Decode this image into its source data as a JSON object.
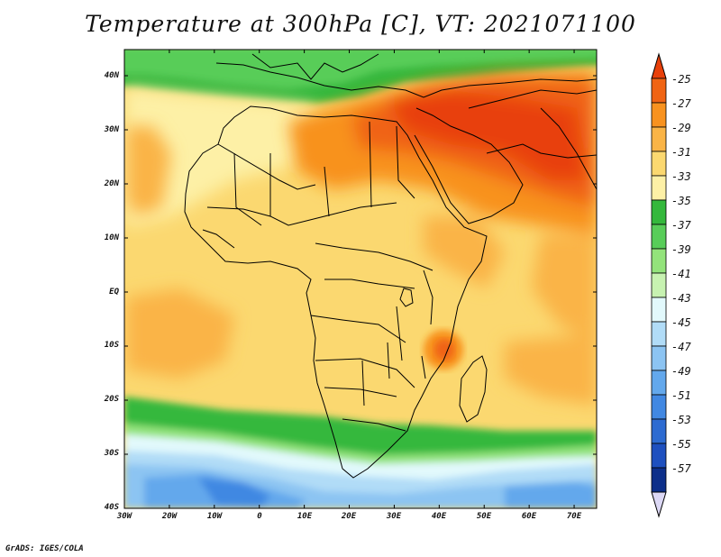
{
  "title": "Temperature at 300hPa [C], VT: 2021071100",
  "credit": "GrADS: IGES/COLA",
  "map": {
    "region": "Africa",
    "lon_labels": [
      "30W",
      "20W",
      "10W",
      "0",
      "10E",
      "20E",
      "30E",
      "40E",
      "50E",
      "60E",
      "70E"
    ],
    "lat_labels": [
      "40N",
      "30N",
      "20N",
      "10N",
      "EQ",
      "10S",
      "20S",
      "30S",
      "40S"
    ]
  },
  "colorbar": {
    "labels": [
      "-25",
      "-27",
      "-29",
      "-31",
      "-33",
      "-35",
      "-37",
      "-39",
      "-41",
      "-43",
      "-45",
      "-47",
      "-49",
      "-51",
      "-53",
      "-55",
      "-57"
    ],
    "colors": [
      "#e8400a",
      "#f06414",
      "#f8921f",
      "#fab446",
      "#fbd870",
      "#fdf0a6",
      "#34b83c",
      "#58cd59",
      "#93e37b",
      "#c7f2b1",
      "#e2f9fc",
      "#b1dcf7",
      "#8cc4f2",
      "#63a8ec",
      "#4188e2",
      "#2d6bd1",
      "#1e50bf",
      "#0d2f8a",
      "#dcd8f5"
    ]
  }
}
